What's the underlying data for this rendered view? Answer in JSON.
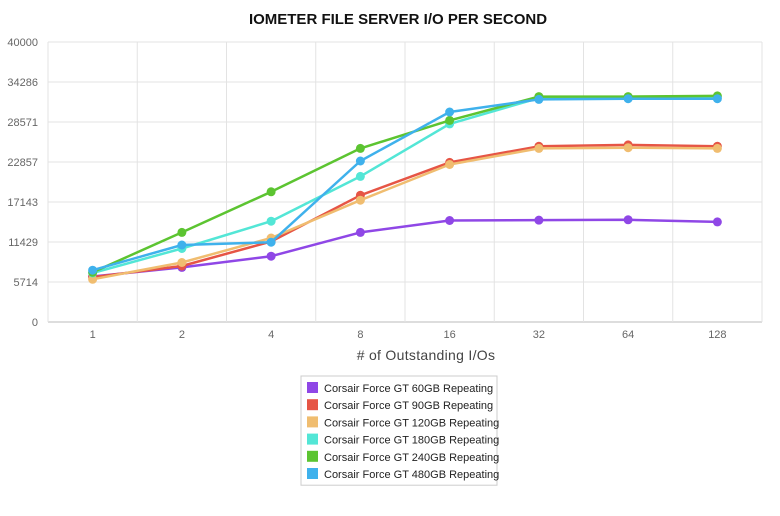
{
  "chart_data": {
    "type": "line",
    "title": "IOMETER FILE SERVER I/O PER SECOND",
    "xlabel": "# of Outstanding I/Os",
    "ylabel": "",
    "categories": [
      "1",
      "2",
      "4",
      "8",
      "16",
      "32",
      "64",
      "128"
    ],
    "y_ticks": [
      "0",
      "5714",
      "11429",
      "17143",
      "22857",
      "28571",
      "34286",
      "40000"
    ],
    "ylim": [
      0,
      40000
    ],
    "grid": true,
    "legend_position": "bottom-center",
    "series": [
      {
        "name": "Corsair Force GT 60GB Repeating",
        "color": "#8f47e6",
        "values": [
          6500,
          7800,
          9400,
          12800,
          14500,
          14550,
          14600,
          14300
        ]
      },
      {
        "name": "Corsair Force GT 90GB Repeating",
        "color": "#e65545",
        "values": [
          6400,
          8000,
          11500,
          18100,
          22800,
          25100,
          25300,
          25100
        ]
      },
      {
        "name": "Corsair Force GT 120GB Repeating",
        "color": "#f0bd70",
        "values": [
          6100,
          8500,
          12000,
          17400,
          22500,
          24800,
          24900,
          24800
        ]
      },
      {
        "name": "Corsair Force GT 180GB Repeating",
        "color": "#53e6d6",
        "values": [
          7000,
          10500,
          14400,
          20800,
          28300,
          32000,
          32000,
          32100
        ]
      },
      {
        "name": "Corsair Force GT 240GB Repeating",
        "color": "#5cc431",
        "values": [
          7100,
          12800,
          18600,
          24800,
          28800,
          32200,
          32200,
          32300
        ]
      },
      {
        "name": "Corsair Force GT 480GB Repeating",
        "color": "#3fb1ec",
        "values": [
          7400,
          11000,
          11400,
          23000,
          30000,
          31800,
          31900,
          31900
        ]
      }
    ]
  }
}
